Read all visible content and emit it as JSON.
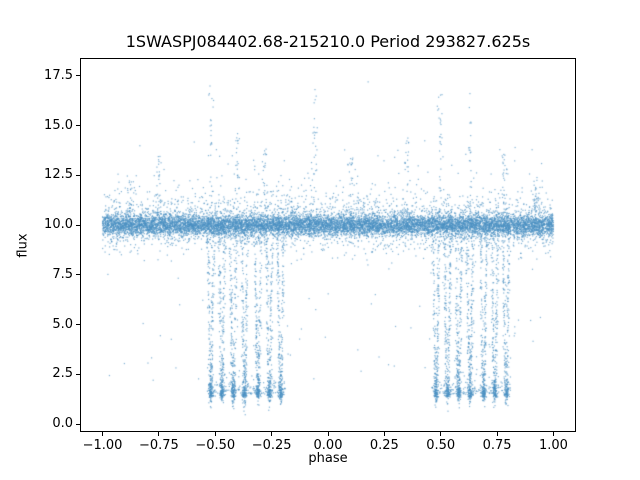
{
  "figure": {
    "background": "#ffffff"
  },
  "chart_data": {
    "type": "scatter",
    "title": "1SWASPJ084402.68-215210.0 Period 293827.625s",
    "xlabel": "phase",
    "ylabel": "flux",
    "xlim": [
      -1.1,
      1.1
    ],
    "ylim": [
      -0.4,
      18.4
    ],
    "x_tick_values": [
      -1.0,
      -0.75,
      -0.5,
      -0.25,
      0.0,
      0.25,
      0.5,
      0.75,
      1.0
    ],
    "x_tick_labels": [
      "−1.00",
      "−0.75",
      "−0.50",
      "−0.25",
      "0.00",
      "0.25",
      "0.50",
      "0.75",
      "1.00"
    ],
    "y_tick_values": [
      0.0,
      2.5,
      5.0,
      7.5,
      10.0,
      12.5,
      15.0,
      17.5
    ],
    "y_tick_labels": [
      "0.0",
      "2.5",
      "5.0",
      "7.5",
      "10.0",
      "12.5",
      "15.0",
      "17.5"
    ],
    "marker_color": "#4a90c2",
    "marker_size_px": 1.2,
    "marker_alpha": 0.7,
    "grid": false,
    "description": "Phase-folded light curve: dense noisy flux band at ~10 across all phases; deep eclipse dips down to flux ~1.3 between phases -0.55..-0.18 and 0.45..0.82; sparse bright outlier streaks up to ~17.5.",
    "generator": {
      "seed": 1234,
      "baseline": {
        "n": 12000,
        "flux": 10.0,
        "sigma_core": 0.27,
        "sigma_tail": 0.7,
        "tail_fraction": 0.18,
        "phase_min": -1.0,
        "phase_max": 1.0
      },
      "high_outliers": {
        "n": 420,
        "min_flux": 10.6,
        "scale": 0.9,
        "max_flux": 17.2
      },
      "low_outliers": {
        "n": 90,
        "min_flux": 2.2,
        "max_flux": 9.2
      },
      "spikes": [
        {
          "phase": -0.88,
          "peak": 12.3
        },
        {
          "phase": -0.75,
          "peak": 13.9
        },
        {
          "phase": -0.52,
          "peak": 17.0
        },
        {
          "phase": -0.4,
          "peak": 14.6
        },
        {
          "phase": -0.28,
          "peak": 14.0
        },
        {
          "phase": -0.06,
          "peak": 16.9
        },
        {
          "phase": 0.1,
          "peak": 13.4
        },
        {
          "phase": 0.35,
          "peak": 14.9
        },
        {
          "phase": 0.5,
          "peak": 17.2
        },
        {
          "phase": 0.63,
          "peak": 16.8
        },
        {
          "phase": 0.78,
          "peak": 13.6
        },
        {
          "phase": 0.92,
          "peak": 12.4
        }
      ],
      "spike_points": 26,
      "eclipses": {
        "bottom_flux": 1.35,
        "width": 0.013,
        "points_per_dip": 230,
        "bottom_cluster_points": 55,
        "centers": [
          -0.52,
          -0.47,
          -0.42,
          -0.37,
          -0.31,
          -0.26,
          -0.21,
          0.48,
          0.53,
          0.58,
          0.63,
          0.69,
          0.74,
          0.79
        ],
        "floor_band": {
          "points_per_side": 160,
          "neg_range": [
            -0.54,
            -0.19
          ],
          "pos_range": [
            0.46,
            0.81
          ],
          "flux": 1.5,
          "spread": 0.45
        }
      }
    }
  }
}
